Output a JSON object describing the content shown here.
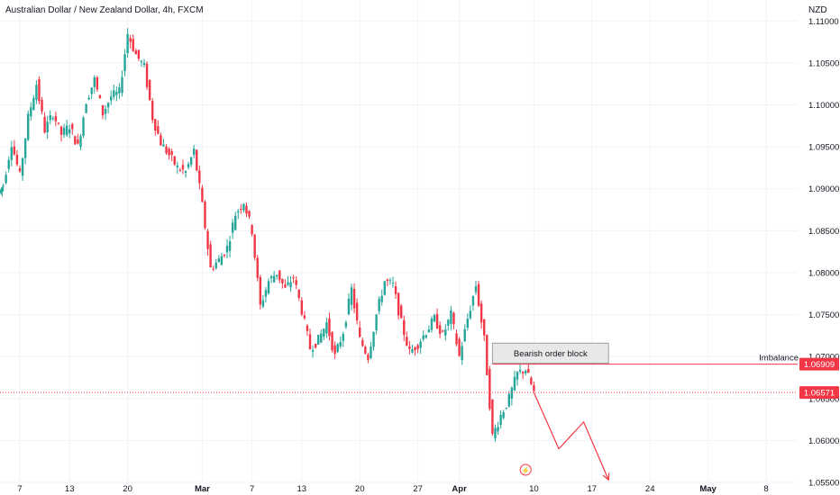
{
  "header": {
    "title": "Australian Dollar / New Zealand Dollar, 4h, FXCM",
    "currency": "NZD"
  },
  "chart_data": {
    "type": "candlestick",
    "title": "Australian Dollar / New Zealand Dollar, 4h, FXCM",
    "ylabel": "NZD",
    "ylim": [
      1.0535,
      1.1125
    ],
    "y_ticks": [
      "1.11000",
      "1.10500",
      "1.10000",
      "1.09500",
      "1.09000",
      "1.08500",
      "1.08000",
      "1.07500",
      "1.07000",
      "1.06500",
      "1.06000",
      "1.05500"
    ],
    "x_ticks": [
      "7",
      "13",
      "20",
      "Mar",
      "7",
      "13",
      "20",
      "27",
      "Apr",
      "10",
      "17",
      "24",
      "May",
      "8"
    ],
    "grid": true,
    "colors": {
      "up": "#26a69a",
      "down": "#f23645",
      "grid": "#f0f3fa",
      "text": "#131722",
      "drawing": "#f23645",
      "dotted_line": "#f23645"
    },
    "price_path": [
      {
        "x": "Feb 5",
        "close": 1.0905
      },
      {
        "x": "Feb 6",
        "close": 1.0955
      },
      {
        "x": "Feb 7",
        "close": 1.0915
      },
      {
        "x": "Feb 8",
        "close": 1.0985
      },
      {
        "x": "Feb 9",
        "close": 1.1025
      },
      {
        "x": "Feb 10",
        "close": 1.097
      },
      {
        "x": "Feb 11",
        "close": 1.099
      },
      {
        "x": "Feb 12",
        "close": 1.0965
      },
      {
        "x": "Feb 13",
        "close": 1.0975
      },
      {
        "x": "Feb 14",
        "close": 1.095
      },
      {
        "x": "Feb 15",
        "close": 1.1005
      },
      {
        "x": "Feb 16",
        "close": 1.103
      },
      {
        "x": "Feb 17",
        "close": 1.099
      },
      {
        "x": "Feb 18",
        "close": 1.101
      },
      {
        "x": "Feb 19",
        "close": 1.1015
      },
      {
        "x": "Feb 20",
        "close": 1.1085
      },
      {
        "x": "Feb 21",
        "close": 1.106
      },
      {
        "x": "Feb 22",
        "close": 1.1045
      },
      {
        "x": "Feb 23",
        "close": 1.0985
      },
      {
        "x": "Feb 24",
        "close": 1.0955
      },
      {
        "x": "Feb 25",
        "close": 1.094
      },
      {
        "x": "Feb 26",
        "close": 1.0925
      },
      {
        "x": "Feb 27",
        "close": 1.092
      },
      {
        "x": "Feb 28",
        "close": 1.0945
      },
      {
        "x": "Mar 1",
        "close": 1.088
      },
      {
        "x": "Mar 2",
        "close": 1.0805
      },
      {
        "x": "Mar 3",
        "close": 1.0815
      },
      {
        "x": "Mar 4",
        "close": 1.083
      },
      {
        "x": "Mar 5",
        "close": 1.087
      },
      {
        "x": "Mar 6",
        "close": 1.0885
      },
      {
        "x": "Mar 7",
        "close": 1.085
      },
      {
        "x": "Mar 8",
        "close": 1.076
      },
      {
        "x": "Mar 9",
        "close": 1.079
      },
      {
        "x": "Mar 10",
        "close": 1.08
      },
      {
        "x": "Mar 11",
        "close": 1.078
      },
      {
        "x": "Mar 12",
        "close": 1.0795
      },
      {
        "x": "Mar 13",
        "close": 1.0755
      },
      {
        "x": "Mar 14",
        "close": 1.071
      },
      {
        "x": "Mar 15",
        "close": 1.072
      },
      {
        "x": "Mar 16",
        "close": 1.074
      },
      {
        "x": "Mar 17",
        "close": 1.07
      },
      {
        "x": "Mar 18",
        "close": 1.073
      },
      {
        "x": "Mar 19",
        "close": 1.078
      },
      {
        "x": "Mar 20",
        "close": 1.072
      },
      {
        "x": "Mar 21",
        "close": 1.07
      },
      {
        "x": "Mar 22",
        "close": 1.075
      },
      {
        "x": "Mar 23",
        "close": 1.079
      },
      {
        "x": "Mar 24",
        "close": 1.0785
      },
      {
        "x": "Mar 25",
        "close": 1.074
      },
      {
        "x": "Mar 26",
        "close": 1.0705
      },
      {
        "x": "Mar 27",
        "close": 1.0715
      },
      {
        "x": "Mar 28",
        "close": 1.073
      },
      {
        "x": "Mar 29",
        "close": 1.0745
      },
      {
        "x": "Mar 30",
        "close": 1.0725
      },
      {
        "x": "Mar 31",
        "close": 1.075
      },
      {
        "x": "Apr 1",
        "close": 1.07
      },
      {
        "x": "Apr 2",
        "close": 1.0745
      },
      {
        "x": "Apr 3",
        "close": 1.0785
      },
      {
        "x": "Apr 4",
        "close": 1.072
      },
      {
        "x": "Apr 5",
        "close": 1.0605
      },
      {
        "x": "Apr 6",
        "close": 1.063
      },
      {
        "x": "Apr 7",
        "close": 1.065
      },
      {
        "x": "Apr 8",
        "close": 1.068
      },
      {
        "x": "Apr 9",
        "close": 1.0685
      },
      {
        "x": "Apr 10",
        "close": 1.0657
      }
    ],
    "projection_path": [
      {
        "x": "Apr 10",
        "y": 1.0657
      },
      {
        "x": "Apr 13",
        "y": 1.059
      },
      {
        "x": "Apr 16",
        "y": 1.0622
      },
      {
        "x": "Apr 19",
        "y": 1.0553
      }
    ],
    "annotations": {
      "order_block_label": "Bearish order block",
      "order_block_x": [
        "Apr 5",
        "Apr 19"
      ],
      "order_block_y": [
        1.0692,
        1.0716
      ],
      "imbalance_label": "Imbalance",
      "imbalance_price": "1.06909",
      "current_price": "1.06571",
      "event_marker": "⚡"
    }
  }
}
